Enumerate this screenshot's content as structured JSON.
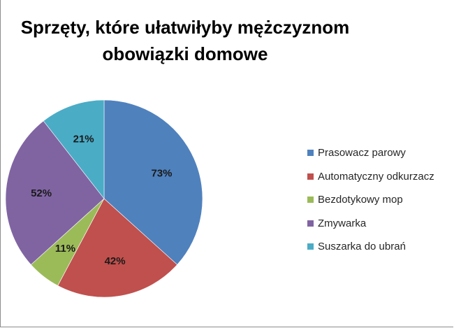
{
  "title_lines": [
    "Sprzęty, które ułatwiłyby mężczyznom",
    "obowiązki domowe"
  ],
  "chart_data": {
    "type": "pie",
    "title": "Sprzęty, które ułatwiłyby mężczyznom obowiązki domowe",
    "categories": [
      "Prasowacz parowy",
      "Automatyczny odkurzacz",
      "Bezdotykowy mop",
      "Zmywarka",
      "Suszarka do ubrań"
    ],
    "values": [
      73,
      42,
      11,
      52,
      21
    ],
    "labels": [
      "73%",
      "42%",
      "11%",
      "52%",
      "21%"
    ],
    "colors": [
      "#4f81bd",
      "#c0504d",
      "#9bbb59",
      "#8064a2",
      "#4bacc6"
    ],
    "legend_position": "right"
  }
}
